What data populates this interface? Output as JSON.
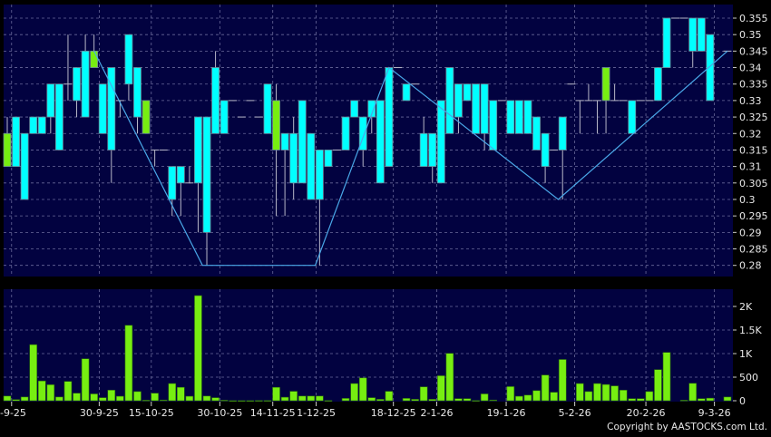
{
  "copyright": "Copyright by AASTOCKS.com Ltd.",
  "colors": {
    "background": "#000000",
    "panel": "#020240",
    "up_candle": "#00ffff",
    "alt_candle": "#77ee11",
    "volume": "#77ee11",
    "zigzag": "#4aa8e8",
    "grid": "#6a6a9a"
  },
  "chart_data": [
    {
      "type": "candlestick",
      "title": "",
      "y_tick_labels": [
        "0.355",
        "0.35",
        "0.345",
        "0.34",
        "0.335",
        "0.33",
        "0.325",
        "0.32",
        "0.315",
        "0.31",
        "0.305",
        "0.3",
        "0.295",
        "0.29",
        "0.285",
        "0.28"
      ],
      "ylim": [
        0.28,
        0.355
      ],
      "grid": true,
      "x_tick_labels": [
        "-9-25",
        "30-9-25",
        "15-10-25",
        "30-10-25",
        "14-11-25",
        "1-12-25",
        "18-12-25",
        "2-1-26",
        "19-1-26",
        "5-2-26",
        "20-2-26",
        "9-3-26"
      ],
      "ohlc": [
        [
          0.31,
          0.325,
          0.31,
          0.32
        ],
        [
          0.31,
          0.325,
          0.31,
          0.325
        ],
        [
          0.3,
          0.32,
          0.3,
          0.32
        ],
        [
          0.32,
          0.325,
          0.32,
          0.325
        ],
        [
          0.32,
          0.325,
          0.32,
          0.325
        ],
        [
          0.325,
          0.335,
          0.32,
          0.335
        ],
        [
          0.315,
          0.335,
          0.315,
          0.335
        ],
        [
          0.335,
          0.35,
          0.33,
          0.335
        ],
        [
          0.33,
          0.34,
          0.325,
          0.34
        ],
        [
          0.325,
          0.35,
          0.325,
          0.345
        ],
        [
          0.34,
          0.35,
          0.34,
          0.345
        ],
        [
          0.32,
          0.335,
          0.32,
          0.335
        ],
        [
          0.315,
          0.34,
          0.305,
          0.34
        ],
        [
          0.33,
          0.33,
          0.325,
          0.33
        ],
        [
          0.335,
          0.35,
          0.33,
          0.35
        ],
        [
          0.325,
          0.34,
          0.32,
          0.34
        ],
        [
          0.32,
          0.33,
          0.32,
          0.33
        ],
        [
          0.315,
          0.315,
          0.31,
          0.315
        ],
        [
          0.315,
          0.315,
          0.315,
          0.315
        ],
        [
          0.3,
          0.31,
          0.295,
          0.31
        ],
        [
          0.305,
          0.31,
          0.295,
          0.31
        ],
        [
          0.305,
          0.31,
          0.305,
          0.305
        ],
        [
          0.305,
          0.325,
          0.29,
          0.325
        ],
        [
          0.29,
          0.325,
          0.28,
          0.325
        ],
        [
          0.32,
          0.345,
          0.32,
          0.34
        ],
        [
          0.32,
          0.33,
          0.32,
          0.33
        ],
        [
          0.33,
          0.33,
          0.33,
          0.33
        ],
        [
          0.325,
          0.325,
          0.325,
          0.325
        ],
        [
          0.33,
          0.33,
          0.33,
          0.33
        ],
        [
          0.325,
          0.325,
          0.325,
          0.325
        ],
        [
          0.32,
          0.335,
          0.32,
          0.335
        ],
        [
          0.315,
          0.335,
          0.295,
          0.33
        ],
        [
          0.315,
          0.32,
          0.295,
          0.32
        ],
        [
          0.305,
          0.325,
          0.3,
          0.32
        ],
        [
          0.305,
          0.33,
          0.305,
          0.33
        ],
        [
          0.3,
          0.32,
          0.3,
          0.32
        ],
        [
          0.3,
          0.315,
          0.28,
          0.315
        ],
        [
          0.31,
          0.315,
          0.31,
          0.315
        ],
        [
          0.315,
          0.315,
          0.315,
          0.315
        ],
        [
          0.315,
          0.325,
          0.315,
          0.325
        ],
        [
          0.325,
          0.33,
          0.325,
          0.33
        ],
        [
          0.315,
          0.325,
          0.31,
          0.325
        ],
        [
          0.325,
          0.33,
          0.32,
          0.33
        ],
        [
          0.305,
          0.33,
          0.305,
          0.33
        ],
        [
          0.31,
          0.34,
          0.31,
          0.34
        ],
        [
          0.34,
          0.34,
          0.34,
          0.34
        ],
        [
          0.33,
          0.335,
          0.33,
          0.335
        ],
        [
          0.335,
          0.335,
          0.335,
          0.335
        ],
        [
          0.31,
          0.325,
          0.31,
          0.32
        ],
        [
          0.31,
          0.32,
          0.305,
          0.32
        ],
        [
          0.305,
          0.33,
          0.305,
          0.33
        ],
        [
          0.32,
          0.34,
          0.32,
          0.34
        ],
        [
          0.325,
          0.335,
          0.32,
          0.335
        ],
        [
          0.33,
          0.335,
          0.33,
          0.335
        ],
        [
          0.32,
          0.335,
          0.32,
          0.335
        ],
        [
          0.32,
          0.335,
          0.315,
          0.335
        ],
        [
          0.315,
          0.33,
          0.315,
          0.33
        ],
        [
          0.33,
          0.33,
          0.33,
          0.33
        ],
        [
          0.32,
          0.33,
          0.32,
          0.33
        ],
        [
          0.32,
          0.33,
          0.32,
          0.33
        ],
        [
          0.32,
          0.33,
          0.32,
          0.33
        ],
        [
          0.315,
          0.325,
          0.315,
          0.325
        ],
        [
          0.31,
          0.32,
          0.305,
          0.32
        ],
        [
          0.315,
          0.315,
          0.315,
          0.315
        ],
        [
          0.315,
          0.325,
          0.3,
          0.325
        ],
        [
          0.335,
          0.335,
          0.335,
          0.335
        ],
        [
          0.33,
          0.33,
          0.32,
          0.33
        ],
        [
          0.33,
          0.335,
          0.33,
          0.33
        ],
        [
          0.33,
          0.33,
          0.32,
          0.33
        ],
        [
          0.33,
          0.34,
          0.32,
          0.34
        ],
        [
          0.33,
          0.335,
          0.33,
          0.33
        ],
        [
          0.33,
          0.33,
          0.33,
          0.33
        ],
        [
          0.32,
          0.33,
          0.32,
          0.33
        ],
        [
          0.33,
          0.33,
          0.33,
          0.33
        ],
        [
          0.33,
          0.33,
          0.33,
          0.33
        ],
        [
          0.33,
          0.34,
          0.33,
          0.34
        ],
        [
          0.34,
          0.355,
          0.34,
          0.355
        ],
        [
          0.355,
          0.355,
          0.355,
          0.355
        ],
        [
          0.355,
          0.355,
          0.355,
          0.355
        ],
        [
          0.345,
          0.355,
          0.34,
          0.355
        ],
        [
          0.345,
          0.355,
          0.345,
          0.355
        ],
        [
          0.33,
          0.35,
          0.33,
          0.35
        ],
        null,
        [
          0.345,
          0.345,
          0.345,
          0.345
        ]
      ],
      "green_candles": [
        0,
        10,
        16,
        31,
        69
      ],
      "zigzag": [
        [
          10,
          0.345
        ],
        [
          22.5,
          0.28
        ],
        [
          35.5,
          0.28
        ],
        [
          44,
          0.34
        ],
        [
          63.5,
          0.3
        ],
        [
          83,
          0.345
        ]
      ]
    },
    {
      "type": "bar",
      "title": "",
      "y_tick_labels": [
        "2K",
        "1.5K",
        "1K",
        "500",
        "0"
      ],
      "ylim": [
        0,
        2200
      ],
      "grid": true,
      "values": [
        100,
        25,
        80,
        1190,
        420,
        340,
        80,
        410,
        160,
        890,
        145,
        65,
        225,
        95,
        1600,
        195,
        10,
        160,
        15,
        365,
        285,
        95,
        2230,
        100,
        65,
        10,
        2,
        2,
        2,
        5,
        5,
        285,
        75,
        200,
        100,
        100,
        100,
        5,
        0,
        50,
        365,
        485,
        65,
        30,
        200,
        0,
        50,
        30,
        295,
        30,
        530,
        1005,
        45,
        45,
        5,
        145,
        15,
        0,
        300,
        95,
        120,
        215,
        545,
        180,
        875,
        0,
        365,
        195,
        365,
        345,
        315,
        225,
        45,
        45,
        195,
        660,
        1025,
        0,
        10,
        370,
        45,
        55,
        0,
        80
      ]
    }
  ]
}
